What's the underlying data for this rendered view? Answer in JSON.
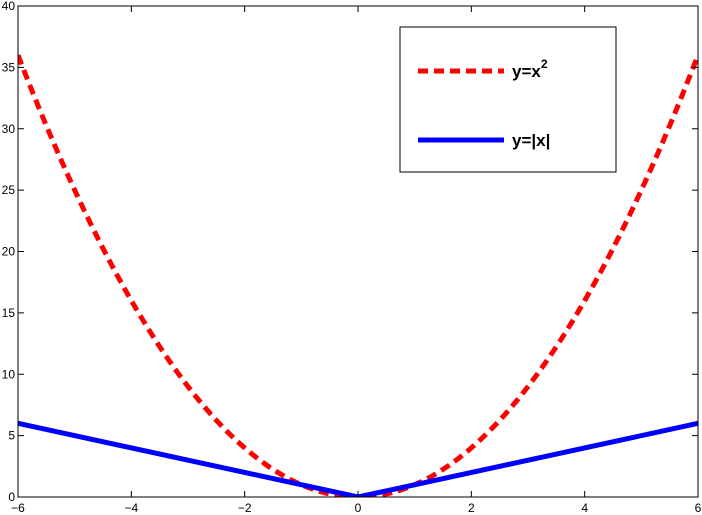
{
  "chart_data": {
    "type": "line",
    "title": "",
    "xlabel": "",
    "ylabel": "",
    "xlim": [
      -6,
      6
    ],
    "ylim": [
      0,
      40
    ],
    "grid": false,
    "legend_position": "top-right",
    "xticks": [
      -6,
      -4,
      -2,
      0,
      2,
      4,
      6
    ],
    "yticks": [
      0,
      5,
      10,
      15,
      20,
      25,
      30,
      35,
      40
    ],
    "series": [
      {
        "name": "y=x2",
        "name_base": "y=x",
        "name_sup": "2",
        "color": "#ff0000",
        "style": "dashed",
        "x": [
          -6,
          -5,
          -4,
          -3,
          -2,
          -1,
          0,
          1,
          2,
          3,
          4,
          5,
          6
        ],
        "y": [
          36,
          25,
          16,
          9,
          4,
          1,
          0,
          1,
          4,
          9,
          16,
          25,
          36
        ]
      },
      {
        "name": "y=|x|",
        "color": "#0000ff",
        "style": "solid",
        "x": [
          -6,
          0,
          6
        ],
        "y": [
          6,
          0,
          6
        ]
      }
    ]
  }
}
